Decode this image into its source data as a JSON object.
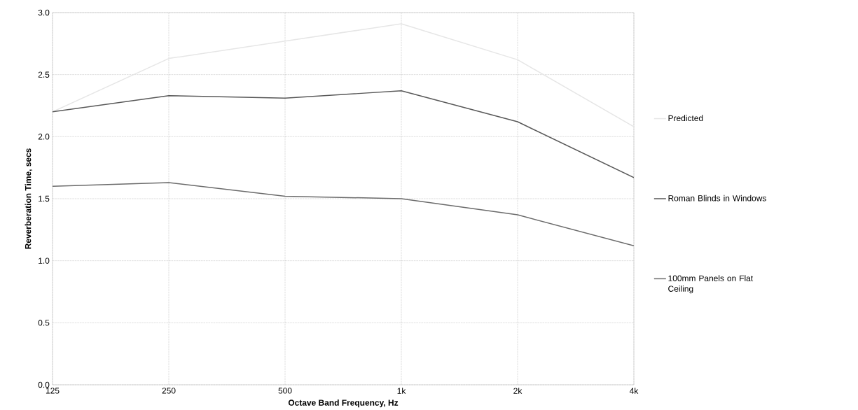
{
  "chart_data": {
    "type": "line",
    "xlabel": "Octave Band Frequency, Hz",
    "ylabel": "Reverberation Time, secs",
    "categories": [
      "125",
      "250",
      "500",
      "1k",
      "2k",
      "4k"
    ],
    "series": [
      {
        "name": "Predicted",
        "color": "#e6e6e6",
        "values": [
          2.2,
          2.63,
          2.77,
          2.91,
          2.62,
          2.08
        ]
      },
      {
        "name": "Roman Blinds in Windows",
        "color": "#595959",
        "values": [
          2.2,
          2.33,
          2.31,
          2.37,
          2.12,
          1.67
        ]
      },
      {
        "name": "100mm Panels on Flat Ceiling",
        "color": "#6b6b6b",
        "values": [
          1.6,
          1.63,
          1.52,
          1.5,
          1.37,
          1.12
        ]
      }
    ],
    "ylim": [
      0,
      3
    ],
    "yticks": [
      {
        "value": 0,
        "label": "0.0"
      },
      {
        "value": 0.5,
        "label": "0.5"
      },
      {
        "value": 1,
        "label": "1.0"
      },
      {
        "value": 1.5,
        "label": "1.5"
      },
      {
        "value": 2,
        "label": "2.0"
      },
      {
        "value": 2.5,
        "label": "2.5"
      },
      {
        "value": 3,
        "label": "3.0"
      }
    ],
    "grid": true,
    "legend": "right",
    "marker": "none",
    "line_style": "solid"
  }
}
